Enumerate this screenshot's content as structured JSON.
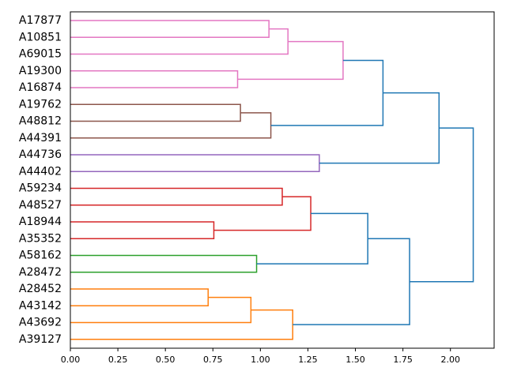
{
  "chart_data": {
    "type": "dendrogram",
    "orientation": "left",
    "title": "",
    "xlabel": "",
    "ylabel": "",
    "xlim": [
      0,
      2.23
    ],
    "x_ticks": [
      0.0,
      0.25,
      0.5,
      0.75,
      1.0,
      1.25,
      1.5,
      1.75,
      2.0
    ],
    "x_tick_labels": [
      "0.00",
      "0.25",
      "0.50",
      "0.75",
      "1.00",
      "1.25",
      "1.50",
      "1.75",
      "2.00"
    ],
    "leaves": [
      "A17877",
      "A10851",
      "A69015",
      "A19300",
      "A16874",
      "A19762",
      "A48812",
      "A44391",
      "A44736",
      "A44402",
      "A59234",
      "A48527",
      "A18944",
      "A35352",
      "A58162",
      "A28472",
      "A28452",
      "A43142",
      "A43692",
      "A39127"
    ],
    "merges": [
      {
        "left": "A17877",
        "right": "A10851",
        "height": 1.045,
        "color": "#e377c2"
      },
      {
        "left": "A17877+A10851",
        "right": "A69015",
        "height": 1.145,
        "color": "#e377c2"
      },
      {
        "left": "A19300",
        "right": "A16874",
        "height": 0.88,
        "color": "#e377c2"
      },
      {
        "left": "A17877+A10851+A69015",
        "right": "A19300+A16874",
        "height": 1.435,
        "color": "#e377c2"
      },
      {
        "left": "A19762",
        "right": "A48812",
        "height": 0.895,
        "color": "#8c564b"
      },
      {
        "left": "A19762+A48812",
        "right": "A44391",
        "height": 1.055,
        "color": "#8c564b"
      },
      {
        "left": "pink-cluster",
        "right": "brown-cluster",
        "height": 1.645,
        "color": "#1f77b4"
      },
      {
        "left": "A44736",
        "right": "A44402",
        "height": 1.31,
        "color": "#9467bd"
      },
      {
        "left": "pink+brown",
        "right": "purple-cluster",
        "height": 1.94,
        "color": "#1f77b4"
      },
      {
        "left": "A59234",
        "right": "A48527",
        "height": 1.115,
        "color": "#d62728"
      },
      {
        "left": "A18944",
        "right": "A35352",
        "height": 0.755,
        "color": "#d62728"
      },
      {
        "left": "A59234+A48527",
        "right": "A18944+A35352",
        "height": 1.265,
        "color": "#d62728"
      },
      {
        "left": "A58162",
        "right": "A28472",
        "height": 0.98,
        "color": "#2ca02c"
      },
      {
        "left": "red-cluster",
        "right": "green-cluster",
        "height": 1.565,
        "color": "#1f77b4"
      },
      {
        "left": "A28452",
        "right": "A43142",
        "height": 0.725,
        "color": "#ff7f0e"
      },
      {
        "left": "A28452+A43142",
        "right": "A43692",
        "height": 0.95,
        "color": "#ff7f0e"
      },
      {
        "left": "A28452+A43142+A43692",
        "right": "A39127",
        "height": 1.17,
        "color": "#ff7f0e"
      },
      {
        "left": "red+green",
        "right": "orange-cluster",
        "height": 1.785,
        "color": "#1f77b4"
      },
      {
        "left": "top-group",
        "right": "bottom-group",
        "height": 2.12,
        "color": "#1f77b4"
      }
    ],
    "links": [
      {
        "leaf_pos": [
          0,
          1
        ],
        "heights": [
          0,
          0
        ],
        "top": 1.045,
        "color": "#e377c2"
      },
      {
        "leaf_pos": [
          0.5,
          2
        ],
        "heights": [
          1.045,
          0
        ],
        "top": 1.145,
        "color": "#e377c2"
      },
      {
        "leaf_pos": [
          3,
          4
        ],
        "heights": [
          0,
          0
        ],
        "top": 0.88,
        "color": "#e377c2"
      },
      {
        "leaf_pos": [
          1.25,
          3.5
        ],
        "heights": [
          1.145,
          0.88
        ],
        "top": 1.435,
        "color": "#e377c2"
      },
      {
        "leaf_pos": [
          5,
          6
        ],
        "heights": [
          0,
          0
        ],
        "top": 0.895,
        "color": "#8c564b"
      },
      {
        "leaf_pos": [
          5.5,
          7
        ],
        "heights": [
          0.895,
          0
        ],
        "top": 1.055,
        "color": "#8c564b"
      },
      {
        "leaf_pos": [
          2.375,
          6.25
        ],
        "heights": [
          1.435,
          1.055
        ],
        "top": 1.645,
        "color": "#1f77b4"
      },
      {
        "leaf_pos": [
          8,
          9
        ],
        "heights": [
          0,
          0
        ],
        "top": 1.31,
        "color": "#9467bd"
      },
      {
        "leaf_pos": [
          4.3125,
          8.5
        ],
        "heights": [
          1.645,
          1.31
        ],
        "top": 1.94,
        "color": "#1f77b4"
      },
      {
        "leaf_pos": [
          10,
          11
        ],
        "heights": [
          0,
          0
        ],
        "top": 1.115,
        "color": "#d62728"
      },
      {
        "leaf_pos": [
          12,
          13
        ],
        "heights": [
          0,
          0
        ],
        "top": 0.755,
        "color": "#d62728"
      },
      {
        "leaf_pos": [
          10.5,
          12.5
        ],
        "heights": [
          1.115,
          0.755
        ],
        "top": 1.265,
        "color": "#d62728"
      },
      {
        "leaf_pos": [
          14,
          15
        ],
        "heights": [
          0,
          0
        ],
        "top": 0.98,
        "color": "#2ca02c"
      },
      {
        "leaf_pos": [
          11.5,
          14.5
        ],
        "heights": [
          1.265,
          0.98
        ],
        "top": 1.565,
        "color": "#1f77b4"
      },
      {
        "leaf_pos": [
          16,
          17
        ],
        "heights": [
          0,
          0
        ],
        "top": 0.725,
        "color": "#ff7f0e"
      },
      {
        "leaf_pos": [
          16.5,
          18
        ],
        "heights": [
          0.725,
          0
        ],
        "top": 0.95,
        "color": "#ff7f0e"
      },
      {
        "leaf_pos": [
          17.25,
          19
        ],
        "heights": [
          0.95,
          0
        ],
        "top": 1.17,
        "color": "#ff7f0e"
      },
      {
        "leaf_pos": [
          13,
          18.125
        ],
        "heights": [
          1.565,
          1.17
        ],
        "top": 1.785,
        "color": "#1f77b4"
      },
      {
        "leaf_pos": [
          6.40625,
          15.5625
        ],
        "heights": [
          1.94,
          1.785
        ],
        "top": 2.12,
        "color": "#1f77b4"
      }
    ]
  }
}
